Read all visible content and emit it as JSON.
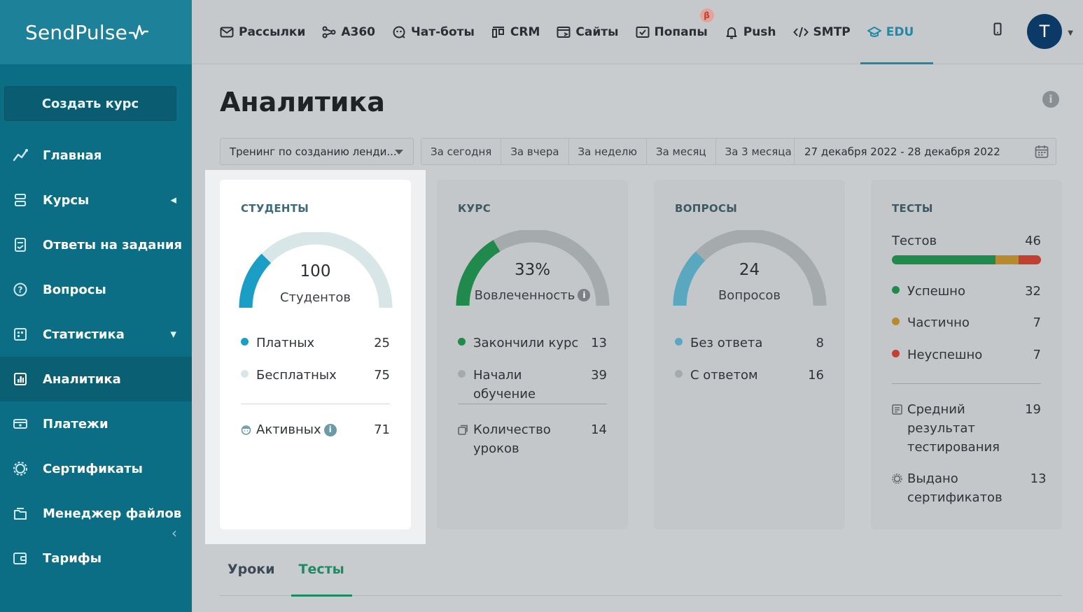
{
  "brand": {
    "name": "SendPulse"
  },
  "sidebar": {
    "create_label": "Создать курс",
    "items": [
      {
        "label": "Главная",
        "icon": "chart-line-icon"
      },
      {
        "label": "Курсы",
        "icon": "courses-icon"
      },
      {
        "label": "Ответы на задания",
        "icon": "answers-icon"
      },
      {
        "label": "Вопросы",
        "icon": "question-icon"
      },
      {
        "label": "Статистика",
        "icon": "statistics-icon"
      },
      {
        "label": "Аналитика",
        "icon": "analytics-icon"
      },
      {
        "label": "Платежи",
        "icon": "payments-icon"
      },
      {
        "label": "Сертификаты",
        "icon": "certificate-icon"
      },
      {
        "label": "Менеджер файлов",
        "icon": "files-icon"
      },
      {
        "label": "Тарифы",
        "icon": "wallet-icon"
      }
    ]
  },
  "topnav": {
    "items": [
      {
        "label": "Рассылки",
        "icon": "mail-icon"
      },
      {
        "label": "A360",
        "icon": "automation-icon"
      },
      {
        "label": "Чат-боты",
        "icon": "chatbot-icon"
      },
      {
        "label": "CRM",
        "icon": "crm-icon"
      },
      {
        "label": "Сайты",
        "icon": "sites-icon"
      },
      {
        "label": "Попапы",
        "icon": "popup-icon"
      },
      {
        "label": "Push",
        "icon": "bell-icon"
      },
      {
        "label": "SMTP",
        "icon": "code-icon"
      },
      {
        "label": "EDU",
        "icon": "graduation-cap-icon"
      }
    ],
    "beta_badge": "β",
    "avatar_letter": "T"
  },
  "page": {
    "title": "Аналитика"
  },
  "filters": {
    "course": "Тренинг по созданию ленди...",
    "periods": [
      "За сегодня",
      "За вчера",
      "За неделю",
      "За месяц",
      "За 3 месяца"
    ],
    "date_range": "27 декабря 2022 - 28 декабря 2022"
  },
  "cards": {
    "students": {
      "title": "СТУДЕНТЫ",
      "total": "100",
      "total_label": "Студентов",
      "paid_label": "Платных",
      "paid_value": "25",
      "free_label": "Бесплатных",
      "free_value": "75",
      "active_label": "Активных",
      "active_value": "71",
      "colors": {
        "primary": "#1a9ec6",
        "secondary": "#d9e6e8"
      }
    },
    "course": {
      "title": "КУРС",
      "percent": "33%",
      "percent_label": "Вовлеченность",
      "finished_label": "Закончили курс",
      "finished_value": "13",
      "started_label": "Начали обучение",
      "started_value": "39",
      "lessons_label": "Количество уроков",
      "lessons_value": "14",
      "colors": {
        "primary": "#1f8a4c",
        "secondary": "#a5aaad"
      }
    },
    "questions": {
      "title": "ВОПРОСЫ",
      "total": "24",
      "total_label": "Вопросов",
      "unanswered_label": "Без ответа",
      "unanswered_value": "8",
      "answered_label": "С ответом",
      "answered_value": "16",
      "colors": {
        "primary": "#5aa8c0",
        "secondary": "#a5aaad"
      }
    },
    "tests": {
      "title": "ТЕСТЫ",
      "total_label": "Тестов",
      "total_value": "46",
      "success_label": "Успешно",
      "success_value": "32",
      "partial_label": "Частично",
      "partial_value": "7",
      "fail_label": "Неуспешно",
      "fail_value": "7",
      "avg_label": "Средний результат тестирования",
      "avg_value": "19",
      "certs_label": "Выдано сертификатов",
      "certs_value": "13",
      "colors": {
        "success": "#1f8a4c",
        "partial": "#b88a2e",
        "fail": "#c2402f"
      }
    }
  },
  "tabs": {
    "lessons": "Уроки",
    "tests": "Тесты"
  }
}
